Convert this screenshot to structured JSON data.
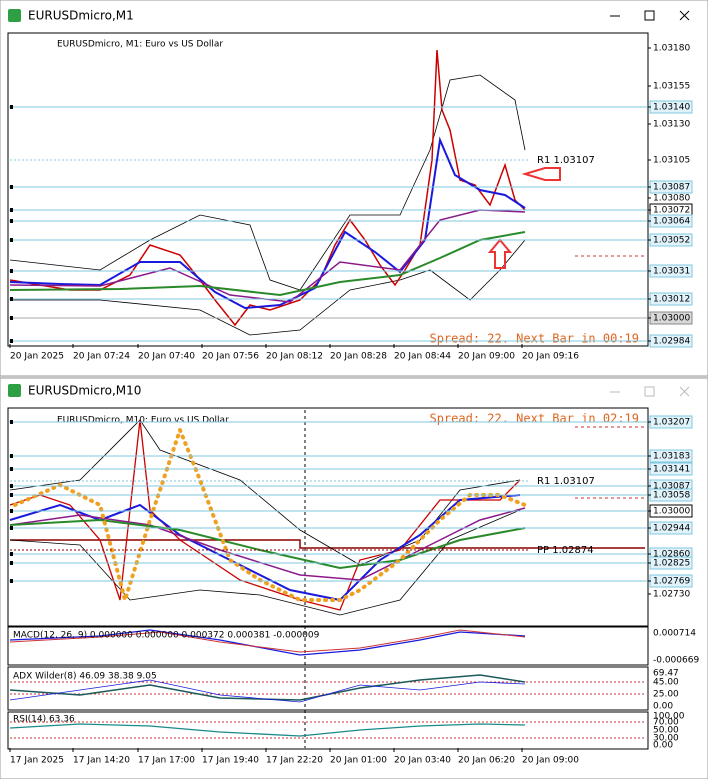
{
  "windows": [
    {
      "title": "EURUSDmicro,M1",
      "chart_label": "EURUSDmicro, M1:  Euro vs US Dollar",
      "status": "Spread: 22. Next Bar in 00:19",
      "annotations": [
        "R1 1.03107"
      ],
      "price_labels": [
        "1.03180",
        "1.03155",
        "1.03140",
        "1.03130",
        "1.03105",
        "1.03087",
        "1.03080",
        "1.03072",
        "1.03064",
        "1.03052",
        "1.03031",
        "1.03012",
        "1.03000",
        "1.02984"
      ],
      "time_labels": [
        "20 Jan 2025",
        "20 Jan 07:24",
        "20 Jan 07:40",
        "20 Jan 07:56",
        "20 Jan 08:12",
        "20 Jan 08:28",
        "20 Jan 08:44",
        "20 Jan 09:00",
        "20 Jan 09:16"
      ]
    },
    {
      "title": "EURUSDmicro,M10",
      "chart_label": "EURUSDmicro, M10:  Euro vs US Dollar",
      "status": "Spread: 22. Next Bar in 02:19",
      "annotations": [
        "R1 1.03107",
        "PP 1.02874"
      ],
      "price_labels": [
        "1.03207",
        "1.03183",
        "1.03141",
        "1.03087",
        "1.03058",
        "1.03000",
        "1.02944",
        "1.02860",
        "1.02825",
        "1.02769",
        "1.02730"
      ],
      "time_labels": [
        "17 Jan 2025",
        "17 Jan 14:20",
        "17 Jan 17:00",
        "17 Jan 19:40",
        "17 Jan 22:20",
        "20 Jan 01:00",
        "20 Jan 03:40",
        "20 Jan 06:20",
        "20 Jan 09:00"
      ],
      "indicators": [
        {
          "label": "MACD(12, 26, 9) 0.000000 0.000000 0.000372 0.000381 -0.000009",
          "scale_labels": [
            "0.000714",
            "-0.000669"
          ]
        },
        {
          "label": "ADX Wilder(8) 46.09 38.38 9.05",
          "scale_labels": [
            "69.47",
            "45.00",
            "25.00",
            "0.00"
          ]
        },
        {
          "label": "RSI(14) 63.36",
          "scale_labels": [
            "100.00",
            "70.00",
            "50.00",
            "30.00",
            "0.00"
          ]
        }
      ]
    }
  ]
}
